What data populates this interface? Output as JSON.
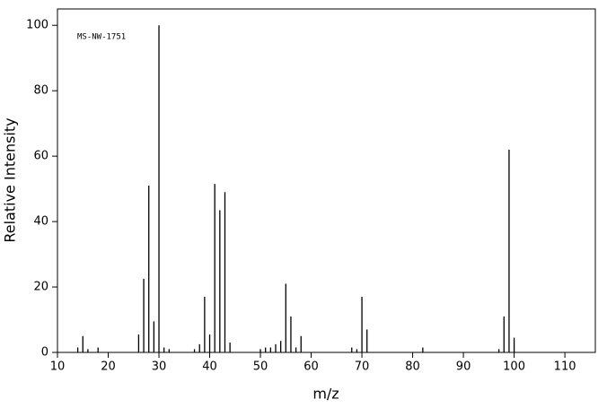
{
  "chart_data": {
    "type": "stick",
    "annotation": "MS-NW-1751",
    "x_label": "m/z",
    "y_label": "Relative Intensity",
    "color": "#000000",
    "x": [
      14,
      15,
      16,
      18,
      26,
      27,
      28,
      29,
      30,
      31,
      32,
      37,
      38,
      39,
      40,
      41,
      42,
      43,
      44,
      50,
      51,
      52,
      53,
      54,
      55,
      56,
      57,
      58,
      68,
      69,
      70,
      71,
      82,
      97,
      98,
      99,
      100
    ],
    "values": [
      1.5,
      5,
      1,
      1.5,
      5.5,
      22.5,
      51,
      9.5,
      100,
      1.5,
      1,
      1,
      2.5,
      17,
      5.5,
      51.5,
      43.5,
      49,
      3,
      1,
      1.5,
      1.5,
      2.5,
      3.5,
      21,
      11,
      1.5,
      5,
      1.5,
      1,
      17,
      7,
      1.5,
      1,
      11,
      62,
      4.5
    ],
    "xlim": [
      10,
      116
    ],
    "ylim": [
      0,
      105
    ],
    "xticks": [
      10,
      20,
      30,
      40,
      50,
      60,
      70,
      80,
      90,
      100,
      110
    ],
    "yticks": [
      0,
      20,
      40,
      60,
      80,
      100
    ]
  }
}
